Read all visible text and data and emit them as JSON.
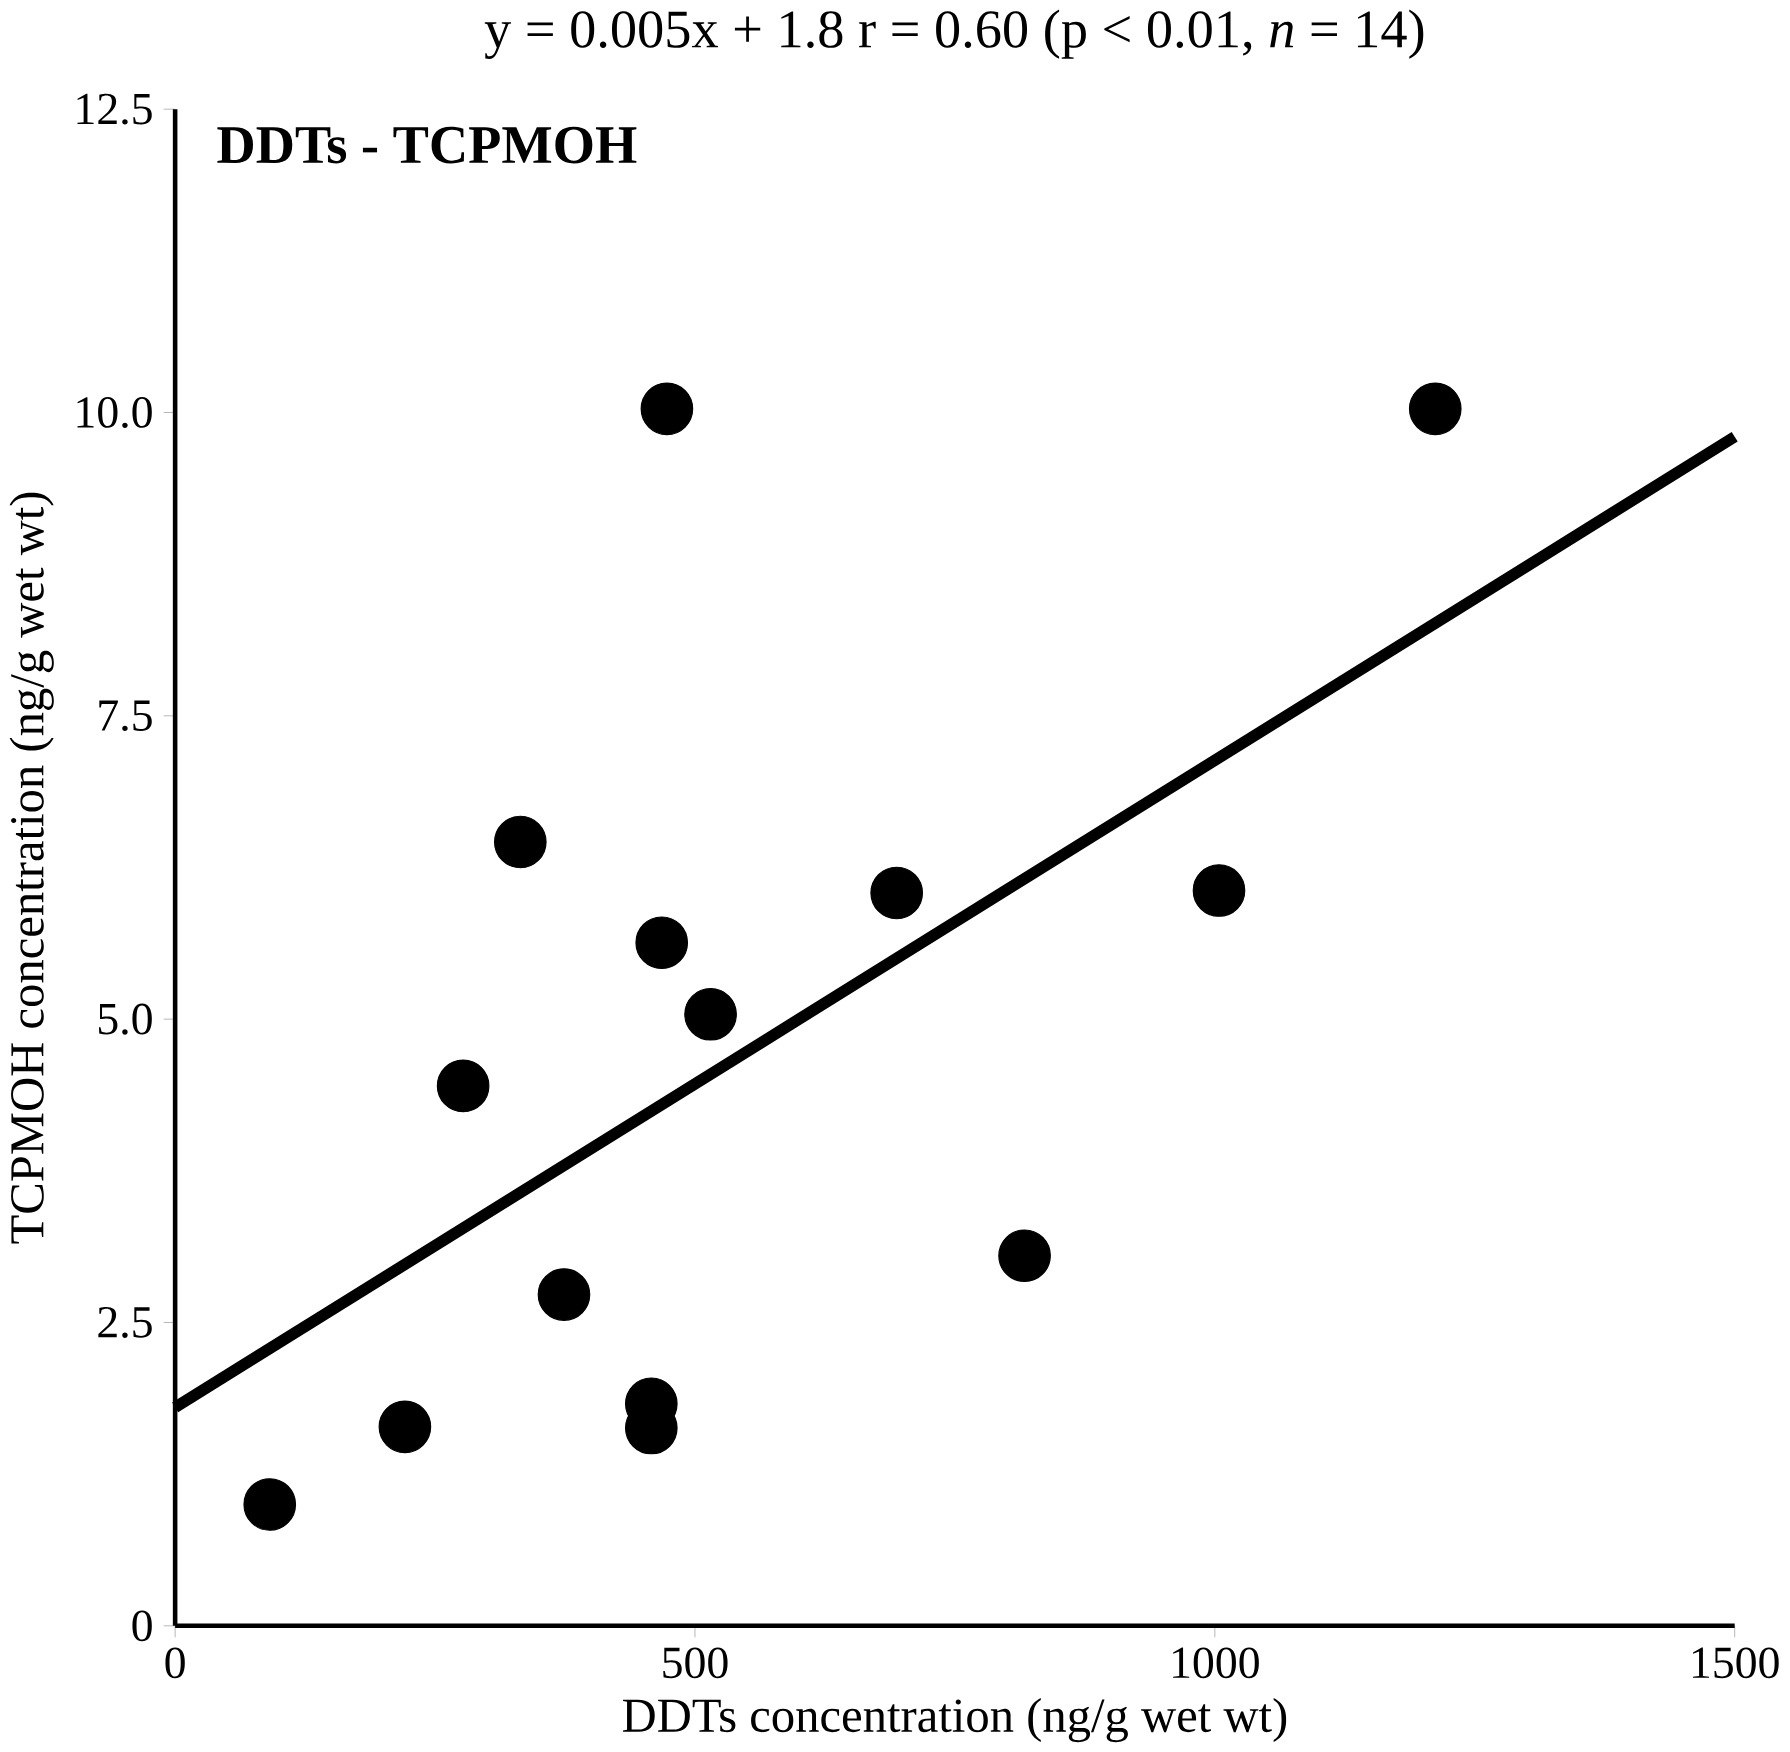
{
  "chart_data": {
    "type": "scatter",
    "title": "y = 0.005x + 1.8  r = 0.60 (p < 0.01, *n* = 14)",
    "xlabel": "DDTs concentration (ng/g wet wt)",
    "ylabel": "TCPMOH concentration (ng/g wet wt)",
    "annotations": [
      "DDTs - TCPMOH"
    ],
    "xlim": [
      0,
      1500
    ],
    "ylim": [
      0,
      12.5
    ],
    "xticks": [
      0,
      500,
      1000,
      1500
    ],
    "yticks": [
      0,
      2.5,
      {
        "value": 5,
        "label": "5.0"
      },
      7.5,
      {
        "value": 10,
        "label": "10.0"
      },
      12.5
    ],
    "series": [
      {
        "marker": "circle",
        "color": "#000000",
        "x": [
          91,
          221,
          277,
          332,
          374,
          458,
          458,
          468,
          473,
          515,
          694,
          817,
          1004,
          1212
        ],
        "values": [
          1.0,
          1.64,
          4.45,
          6.46,
          2.73,
          1.63,
          1.83,
          5.63,
          10.03,
          5.04,
          6.04,
          3.05,
          6.06,
          10.03
        ]
      },
      {
        "type": "line",
        "color": "#000000",
        "marker": "none",
        "x": [
          0,
          1500
        ],
        "values": [
          1.8,
          9.8
        ]
      }
    ]
  }
}
